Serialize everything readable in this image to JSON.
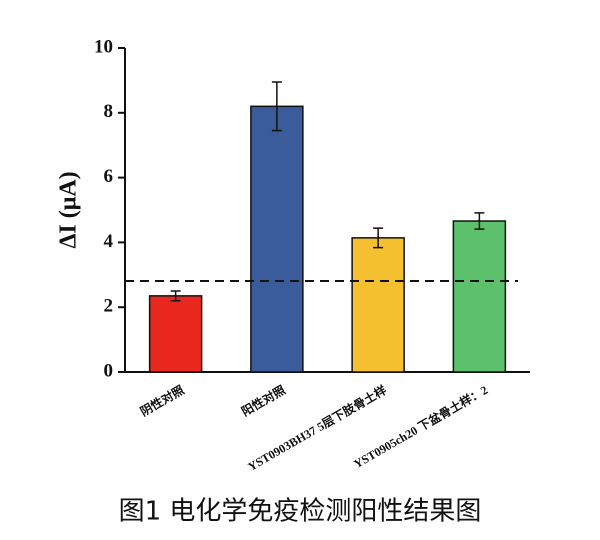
{
  "chart_data": {
    "type": "bar",
    "y_label": "ΔI (μA)",
    "caption": "图1 电化学免疫检测阳性结果图",
    "categories": [
      "阴性对照",
      "阳性对照",
      "YST0903BH37 5层下肢骨土样",
      "YST0905ch20 下盆骨土样：2"
    ],
    "values": [
      2.35,
      8.2,
      4.14,
      4.66
    ],
    "errors": [
      0.15,
      0.75,
      0.3,
      0.25
    ],
    "colors": [
      "#e8281e",
      "#3a5c9a",
      "#f5c030",
      "#5cc16a"
    ],
    "threshold": 2.81,
    "ylim": [
      0,
      10
    ],
    "yticks": [
      0,
      2,
      4,
      6,
      8,
      10
    ],
    "grid": false
  }
}
